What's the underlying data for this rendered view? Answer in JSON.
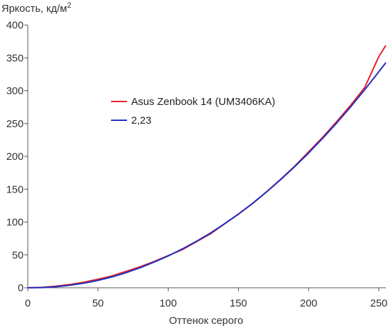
{
  "chart_data": {
    "type": "line",
    "title": "",
    "ylabel_main": "Яркость, кд/м",
    "ylabel_sup": "2",
    "xlabel": "Оттенок серого",
    "xlim": [
      0,
      255
    ],
    "ylim": [
      0,
      400
    ],
    "xticks": [
      "0",
      "50",
      "100",
      "150",
      "200",
      "250"
    ],
    "yticks": [
      "0",
      "50",
      "100",
      "150",
      "200",
      "250",
      "300",
      "350",
      "400"
    ],
    "grid": false,
    "legend_position": "center-left",
    "series": [
      {
        "name": "Asus Zenbook 14 (UM3406KA)",
        "color": "#e8202a",
        "x": [
          0,
          10,
          20,
          30,
          40,
          50,
          60,
          70,
          80,
          90,
          100,
          110,
          120,
          130,
          140,
          150,
          160,
          170,
          180,
          190,
          200,
          210,
          220,
          230,
          240,
          250,
          255
        ],
        "y": [
          0,
          0.6,
          2.3,
          5,
          8.5,
          13,
          18,
          25,
          32,
          40,
          49,
          58,
          70,
          82,
          97,
          112,
          128,
          146,
          165,
          185,
          207,
          229,
          253,
          278,
          305,
          352,
          369
        ]
      },
      {
        "name": "2,23",
        "color": "#1f2fbf",
        "x": [
          0,
          10,
          20,
          30,
          40,
          50,
          60,
          70,
          80,
          90,
          100,
          110,
          120,
          130,
          140,
          150,
          160,
          170,
          180,
          190,
          200,
          210,
          220,
          230,
          240,
          250,
          255
        ],
        "y": [
          0,
          0.3,
          1.6,
          3.8,
          7,
          11.2,
          16.5,
          23,
          30.5,
          39,
          48.5,
          59,
          70.6,
          83.3,
          97.2,
          112.2,
          128.4,
          145.8,
          164.4,
          184.2,
          205.2,
          227.4,
          250.9,
          275.6,
          301.6,
          328.8,
          342.8
        ]
      }
    ]
  }
}
